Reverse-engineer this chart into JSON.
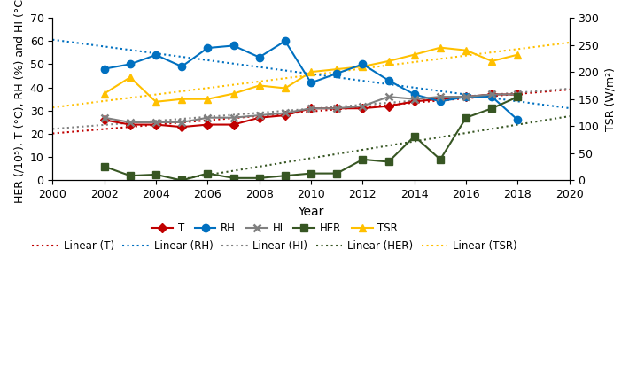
{
  "years": [
    2002,
    2003,
    2004,
    2005,
    2006,
    2007,
    2008,
    2009,
    2010,
    2011,
    2012,
    2013,
    2014,
    2015,
    2016,
    2017,
    2018
  ],
  "T": [
    26,
    24,
    24,
    23,
    24,
    24,
    27,
    28,
    31,
    31,
    31,
    32,
    34,
    35,
    36,
    37,
    37
  ],
  "RH": [
    48,
    50,
    54,
    49,
    57,
    58,
    53,
    60,
    42,
    46,
    50,
    43,
    37,
    34,
    36,
    36,
    26
  ],
  "HI": [
    27,
    25,
    25,
    25,
    27,
    27,
    28,
    29,
    31,
    31,
    32,
    36,
    35,
    36,
    36,
    37,
    37
  ],
  "HER": [
    6,
    2,
    2.5,
    0,
    3,
    1,
    1,
    2,
    3,
    3,
    9,
    8,
    19,
    9,
    27,
    31,
    36
  ],
  "TSR": [
    160,
    190,
    145,
    150,
    150,
    160,
    175,
    170,
    200,
    205,
    210,
    220,
    232,
    245,
    240,
    220,
    232
  ],
  "T_color": "#c00000",
  "RH_color": "#0070c0",
  "HI_color": "#808080",
  "HER_color": "#375623",
  "TSR_color": "#ffc000",
  "left_ylabel": "HER (/10⁵), T (°C), RH (%) and HI (°C)",
  "right_ylabel": "TSR (W/m²)",
  "xlabel": "Year",
  "xlim": [
    2000,
    2020
  ],
  "ylim_left": [
    0,
    70
  ],
  "ylim_right": [
    0,
    300
  ],
  "yticks_left": [
    0,
    10,
    20,
    30,
    40,
    50,
    60,
    70
  ],
  "yticks_right": [
    0,
    50,
    100,
    150,
    200,
    250,
    300
  ],
  "xticks": [
    2000,
    2002,
    2004,
    2006,
    2008,
    2010,
    2012,
    2014,
    2016,
    2018,
    2020
  ],
  "figsize": [
    7.1,
    4.32
  ],
  "dpi": 100
}
